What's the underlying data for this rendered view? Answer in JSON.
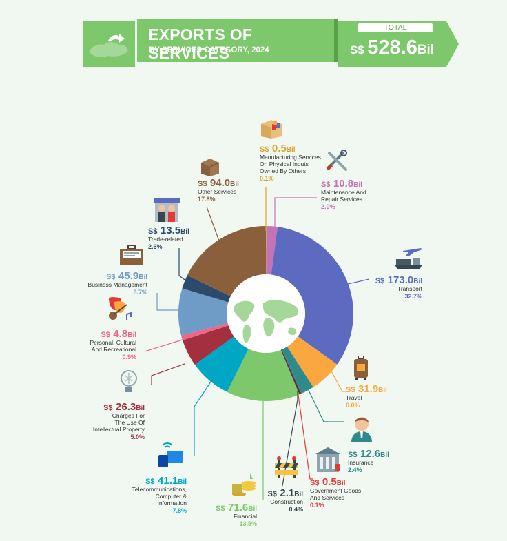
{
  "header": {
    "title": "EXPORTS OF SERVICES",
    "subtitle": "BY SERVICES CATEGORY, 2024",
    "total_label": "TOTAL",
    "total_currency": "S$",
    "total_value": "528.6",
    "total_unit": "Bil"
  },
  "colors": {
    "header_green": "#7dc86a",
    "background": "#f1f8f1"
  },
  "chart_data": {
    "type": "pie",
    "title": "EXPORTS OF SERVICES",
    "subtitle": "BY SERVICES CATEGORY, 2024",
    "unit": "Bil",
    "currency": "S$",
    "slices": [
      {
        "label": "Manufacturing Services On Physical Inputs Owned By Others",
        "value": 0.5,
        "value_text": "0.5",
        "percent": "0.1%",
        "color": "#d4a72c"
      },
      {
        "label": "Maintenance And Repair Services",
        "value": 10.8,
        "value_text": "10.8",
        "percent": "2.0%",
        "color": "#c473b8"
      },
      {
        "label": "Transport",
        "value": 173.0,
        "value_text": "173.0",
        "percent": "32.7%",
        "color": "#5c6bc0"
      },
      {
        "label": "Travel",
        "value": 31.9,
        "value_text": "31.9",
        "percent": "6.0%",
        "color": "#f9a73e"
      },
      {
        "label": "Insurance",
        "value": 12.6,
        "value_text": "12.6",
        "percent": "2.4%",
        "color": "#2e8b8b"
      },
      {
        "label": "Government Goods And Services",
        "value": 0.5,
        "value_text": "0.5",
        "percent": "0.1%",
        "color": "#e53935"
      },
      {
        "label": "Construction",
        "value": 2.1,
        "value_text": "2.1",
        "percent": "0.4%",
        "color": "#37474f"
      },
      {
        "label": "Financial",
        "value": 71.6,
        "value_text": "71.6",
        "percent": "13.5%",
        "color": "#7dc86a"
      },
      {
        "label": "Telecommunications, Computer & Information",
        "value": 41.1,
        "value_text": "41.1",
        "percent": "7.8%",
        "color": "#00a7c4"
      },
      {
        "label": "Charges For The Use Of Intellectual Property",
        "value": 26.3,
        "value_text": "26.3",
        "percent": "5.0%",
        "color": "#a4303f"
      },
      {
        "label": "Personal, Cultural And Recreational",
        "value": 4.8,
        "value_text": "4.8",
        "percent": "0.9%",
        "color": "#f06486"
      },
      {
        "label": "Business Management",
        "value": 45.9,
        "value_text": "45.9",
        "percent": "8.7%",
        "color": "#6f9cc7"
      },
      {
        "label": "Trade-related",
        "value": 13.5,
        "value_text": "13.5",
        "percent": "2.6%",
        "color": "#2c4a6b"
      },
      {
        "label": "Other Services",
        "value": 94.0,
        "value_text": "94.0",
        "percent": "17.8%",
        "color": "#8a5f3b"
      }
    ]
  },
  "labels": [
    {
      "currency": "S$",
      "value": "0.5",
      "unit": "Bil",
      "name_lines": [
        "Manufacturing Services",
        "On Physical Inputs",
        "Owned By Others"
      ],
      "percent": "0.1%",
      "color": "#d4a72c"
    },
    {
      "currency": "S$",
      "value": "10.8",
      "unit": "Bil",
      "name_lines": [
        "Maintenance And",
        "Repair Services"
      ],
      "percent": "2.0%",
      "color": "#c473b8"
    },
    {
      "currency": "S$",
      "value": "173.0",
      "unit": "Bil",
      "name_lines": [
        "Transport"
      ],
      "percent": "32.7%",
      "color": "#5c6bc0"
    },
    {
      "currency": "S$",
      "value": "31.9",
      "unit": "Bil",
      "name_lines": [
        "Travel"
      ],
      "percent": "6.0%",
      "color": "#f9a73e"
    },
    {
      "currency": "S$",
      "value": "12.6",
      "unit": "Bil",
      "name_lines": [
        "Insurance"
      ],
      "percent": "2.4%",
      "color": "#2e8b8b"
    },
    {
      "currency": "S$",
      "value": "0.5",
      "unit": "Bil",
      "name_lines": [
        "Government Goods",
        "And Services"
      ],
      "percent": "0.1%",
      "color": "#e53935"
    },
    {
      "currency": "S$",
      "value": "2.1",
      "unit": "Bil",
      "name_lines": [
        "Construction"
      ],
      "percent": "0.4%",
      "color": "#37474f"
    },
    {
      "currency": "S$",
      "value": "71.6",
      "unit": "Bil",
      "name_lines": [
        "Financial"
      ],
      "percent": "13.5%",
      "color": "#7dc86a"
    },
    {
      "currency": "S$",
      "value": "41.1",
      "unit": "Bil",
      "name_lines": [
        "Telecommunications,",
        "Computer &",
        "Information"
      ],
      "percent": "7.8%",
      "color": "#00a7c4"
    },
    {
      "currency": "S$",
      "value": "26.3",
      "unit": "Bil",
      "name_lines": [
        "Charges For",
        "The Use Of",
        "Intellectual Property"
      ],
      "percent": "5.0%",
      "color": "#a4303f"
    },
    {
      "currency": "S$",
      "value": "4.8",
      "unit": "Bil",
      "name_lines": [
        "Personal, Cultural",
        "And Recreational"
      ],
      "percent": "0.9%",
      "color": "#f06486"
    },
    {
      "currency": "S$",
      "value": "45.9",
      "unit": "Bil",
      "name_lines": [
        "Business Management"
      ],
      "percent": "8.7%",
      "color": "#6f9cc7"
    },
    {
      "currency": "S$",
      "value": "13.5",
      "unit": "Bil",
      "name_lines": [
        "Trade-related"
      ],
      "percent": "2.6%",
      "color": "#2c4a6b"
    },
    {
      "currency": "S$",
      "value": "94.0",
      "unit": "Bil",
      "name_lines": [
        "Other Services"
      ],
      "percent": "17.8%",
      "color": "#8a5f3b"
    }
  ],
  "icons": [
    "singapore-map-icon",
    "world-map-icon",
    "box-icon",
    "tools-icon",
    "transport-icon",
    "luggage-icon",
    "person-icon",
    "government-building-icon",
    "construction-barrier-icon",
    "money-icon",
    "devices-icon",
    "lightbulb-icon",
    "theatre-masks-guitar-icon",
    "briefcase-icon",
    "shop-people-icon",
    "cardboard-box-icon"
  ]
}
